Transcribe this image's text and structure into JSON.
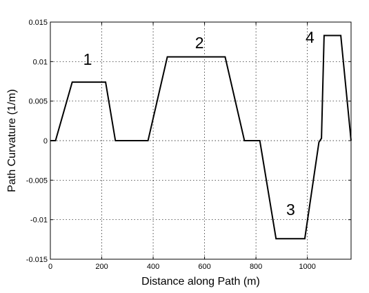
{
  "chart_data": {
    "type": "line",
    "title": "",
    "xlabel": "Distance along Path (m)",
    "ylabel": "Path Curvature (1/m)",
    "xlim": [
      0,
      1170
    ],
    "ylim": [
      -0.015,
      0.015
    ],
    "grid": true,
    "x_ticks": [
      0,
      200,
      400,
      600,
      800,
      1000
    ],
    "x_tick_labels": [
      "0",
      "200",
      "400",
      "600",
      "800",
      "1000"
    ],
    "y_ticks": [
      0.015,
      0.01,
      0.005,
      0,
      -0.005,
      -0.01,
      -0.015
    ],
    "y_tick_labels": [
      "0.015",
      "0.01",
      "0.005",
      "0",
      "-0.005",
      "-0.01",
      "-0.015"
    ],
    "series": [
      {
        "color": "#000000",
        "x": [
          0,
          20,
          85,
          215,
          253,
          380,
          455,
          680,
          755,
          815,
          878,
          990,
          1045,
          1055,
          1065,
          1130,
          1170
        ],
        "y": [
          0,
          0,
          0.0074,
          0.0074,
          0,
          0,
          0.0106,
          0.0106,
          0,
          0,
          -0.0124,
          -0.0124,
          -0.0002,
          0.0003,
          0.0133,
          0.0133,
          0
        ]
      }
    ],
    "annotations": [
      {
        "text": "1",
        "x": 145,
        "y": 0.0096
      },
      {
        "text": "2",
        "x": 580,
        "y": 0.0117
      },
      {
        "text": "3",
        "x": 935,
        "y": -0.0094
      },
      {
        "text": "4",
        "x": 1010,
        "y": 0.0124
      }
    ]
  }
}
